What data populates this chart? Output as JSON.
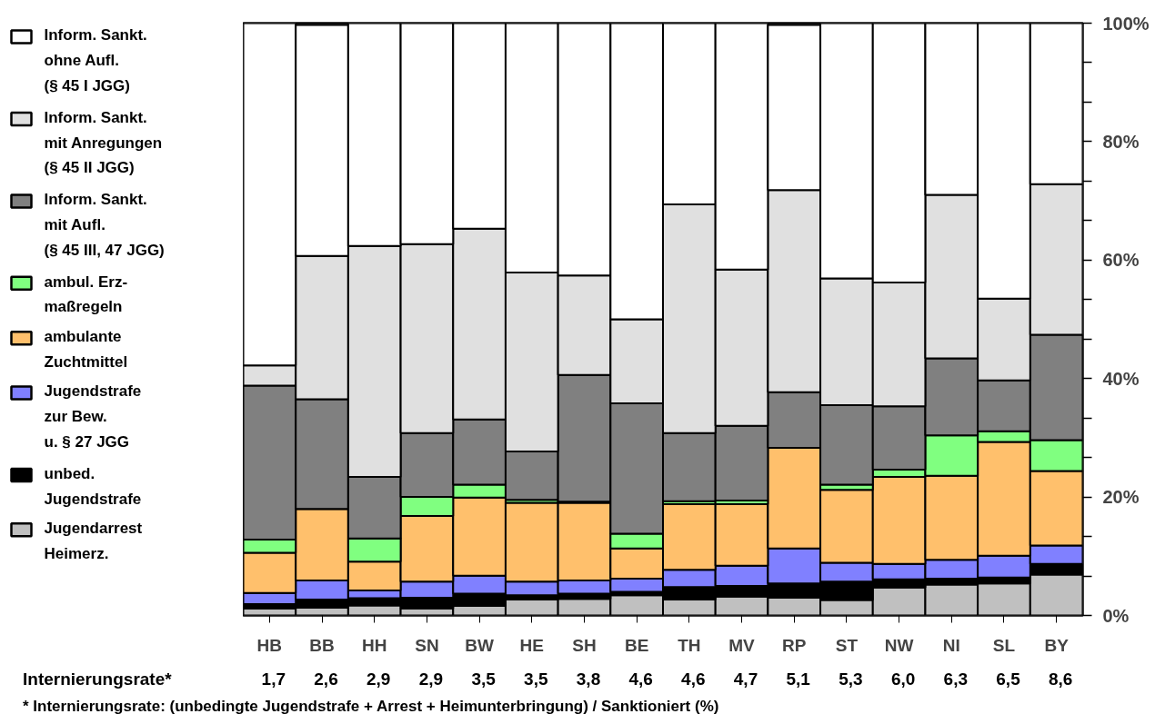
{
  "chart_data": {
    "type": "bar",
    "stacked": true,
    "categories": [
      "HB",
      "BB",
      "HH",
      "SN",
      "BW",
      "HE",
      "SH",
      "BE",
      "TH",
      "MV",
      "RP",
      "ST",
      "NW",
      "NI",
      "SL",
      "BY"
    ],
    "series": [
      {
        "name": "Jugendarrest\nHeimerz.",
        "color": "#c0c0c0",
        "values": [
          1.2,
          1.3,
          1.7,
          1.2,
          1.6,
          2.7,
          2.8,
          3.4,
          2.7,
          3.2,
          3.0,
          2.6,
          4.7,
          5.2,
          5.4,
          6.9
        ]
      },
      {
        "name": "unbed.\nJugendstrafe",
        "color": "#000000",
        "values": [
          0.7,
          1.4,
          1.2,
          1.8,
          2.1,
          0.7,
          0.9,
          0.6,
          2.1,
          1.8,
          2.4,
          3.1,
          1.4,
          1.0,
          1.0,
          1.8
        ]
      },
      {
        "name": "Jugendstrafe\nzur Bew.\nu. § 27 JGG",
        "color": "#8080ff",
        "values": [
          1.9,
          3.2,
          1.3,
          2.7,
          3.0,
          2.3,
          2.2,
          2.2,
          2.9,
          3.4,
          5.9,
          3.2,
          2.6,
          3.2,
          3.7,
          3.1
        ]
      },
      {
        "name": "ambulante\nZuchtmittel",
        "color": "#ffc06c",
        "values": [
          6.8,
          12.1,
          4.9,
          11.1,
          13.2,
          13.3,
          13.1,
          5.1,
          11.1,
          10.4,
          17.0,
          12.3,
          14.7,
          14.2,
          19.2,
          12.6
        ]
      },
      {
        "name": "ambul. Erz-\nmaßregeln",
        "color": "#80ff80",
        "values": [
          2.2,
          null,
          3.9,
          3.2,
          2.2,
          0.5,
          0.2,
          2.5,
          0.5,
          0.6,
          0,
          0.9,
          1.2,
          6.8,
          1.8,
          5.2
        ]
      },
      {
        "name": "Inform. Sankt.\nmit Aufl.\n(§ 45 III, 47 JGG)",
        "color": "#808080",
        "values": [
          26.0,
          18.5,
          10.4,
          10.8,
          11.0,
          8.2,
          21.4,
          22.0,
          11.5,
          12.6,
          9.4,
          13.4,
          10.7,
          13.0,
          8.6,
          17.8
        ]
      },
      {
        "name": "Inform. Sankt.\nmit Anregungen\n(§ 45 II JGG)",
        "color": "#e0e0e0",
        "values": [
          3.4,
          24.2,
          39.0,
          31.9,
          32.2,
          30.2,
          16.8,
          14.2,
          38.6,
          26.4,
          34.1,
          21.4,
          20.9,
          27.6,
          13.8,
          25.4
        ]
      },
      {
        "name": "Inform. Sankt.\nohne Aufl.\n(§ 45 I JGG)",
        "color": "#ffffff",
        "values": [
          57.8,
          39.0,
          37.6,
          37.3,
          34.7,
          42.1,
          42.6,
          50.0,
          30.6,
          41.6,
          27.9,
          43.1,
          43.8,
          29.0,
          46.5,
          27.2
        ]
      }
    ],
    "ylim": [
      0,
      100
    ],
    "yticks": [
      {
        "value": 0,
        "label": "0%"
      },
      {
        "value": 6.67,
        "label": null
      },
      {
        "value": 13.33,
        "label": null
      },
      {
        "value": 20,
        "label": "20%"
      },
      {
        "value": 26.67,
        "label": null
      },
      {
        "value": 33.33,
        "label": null
      },
      {
        "value": 40,
        "label": "40%"
      },
      {
        "value": 46.67,
        "label": null
      },
      {
        "value": 53.33,
        "label": null
      },
      {
        "value": 60,
        "label": "60%"
      },
      {
        "value": 66.67,
        "label": null
      },
      {
        "value": 73.33,
        "label": null
      },
      {
        "value": 80,
        "label": "80%"
      },
      {
        "value": 86.67,
        "label": null
      },
      {
        "value": 93.33,
        "label": null
      },
      {
        "value": 100,
        "label": "100%"
      }
    ],
    "grid": false,
    "legend": "left",
    "annotations": [
      "Internierungsrate*",
      "1,7",
      "2,6",
      "2,9",
      "2,9",
      "3,5",
      "3,5",
      "3,8",
      "4,6",
      "4,6",
      "4,7",
      "5,1",
      "5,3",
      "6,0",
      "6,3",
      "6,5",
      "8,6",
      "*  Internierungsrate: (unbedingte Jugendstrafe + Arrest + Heimunterbringung) /  Sanktioniert (%)"
    ]
  }
}
